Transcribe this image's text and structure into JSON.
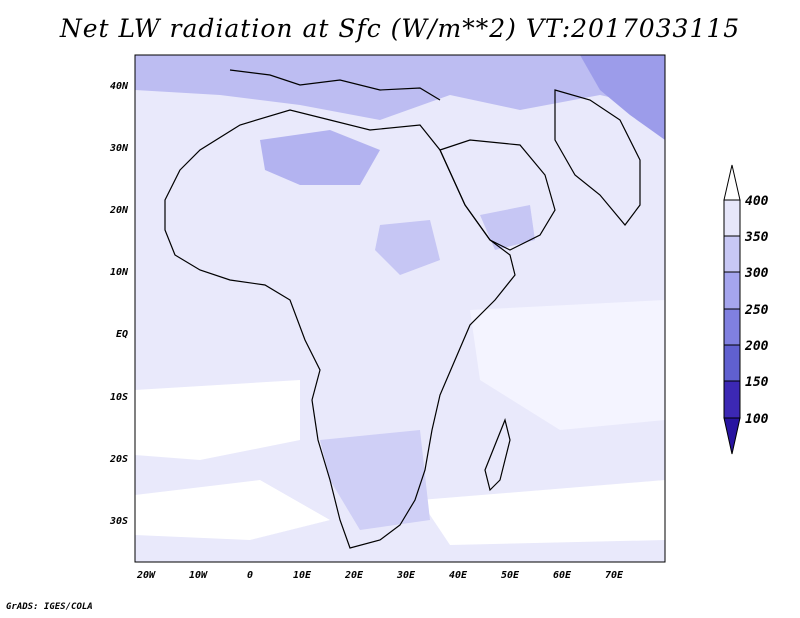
{
  "title": "Net LW radiation at Sfc (W/m**2) VT:2017033115",
  "footer": "GrADS: IGES/COLA",
  "map": {
    "lon_range": [
      -22,
      80
    ],
    "lat_range": [
      -37,
      46
    ],
    "x_ticks": [
      "20W",
      "10W",
      "0",
      "10E",
      "20E",
      "30E",
      "40E",
      "50E",
      "60E",
      "70E"
    ],
    "y_ticks": [
      "40N",
      "30N",
      "20N",
      "10N",
      "EQ",
      "10S",
      "20S",
      "30S"
    ]
  },
  "colorbar": {
    "labels": [
      "400",
      "350",
      "300",
      "250",
      "200",
      "150",
      "100"
    ],
    "colors": [
      "#ffffff",
      "#e6e6fa",
      "#c8c8f5",
      "#a5a5ee",
      "#8080e0",
      "#6060d0",
      "#3c28b4",
      "#2814a0"
    ]
  }
}
